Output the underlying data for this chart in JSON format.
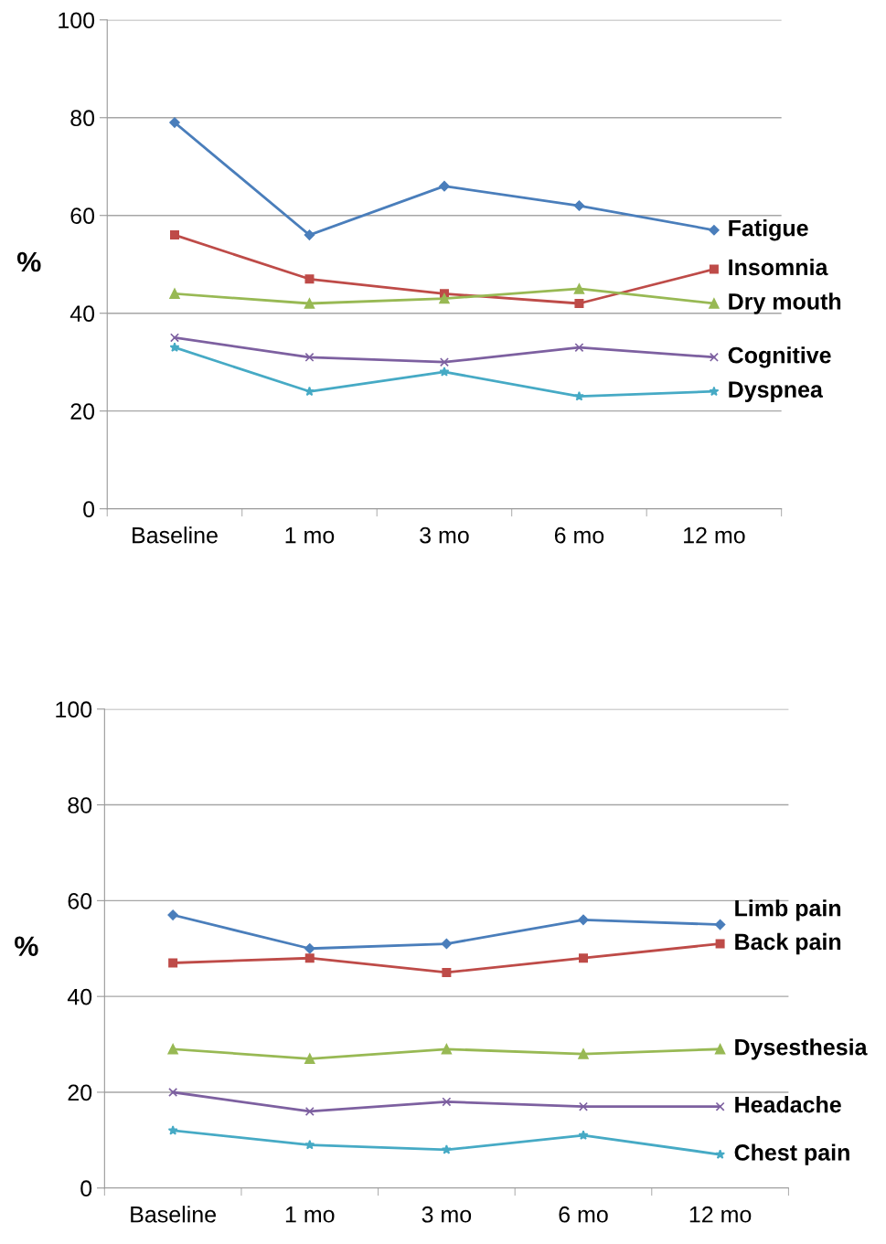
{
  "chart_data": [
    {
      "type": "line",
      "ylabel": "%",
      "categories": [
        "Baseline",
        "1 mo",
        "3 mo",
        "6 mo",
        "12 mo"
      ],
      "ylim": [
        0,
        100
      ],
      "yticks": [
        0,
        20,
        40,
        60,
        80,
        100
      ],
      "grid": "y",
      "legend": false,
      "series": [
        {
          "name": "Fatigue",
          "color": "#4a7ebb",
          "marker": "diamond",
          "values": [
            79,
            56,
            66,
            62,
            57
          ]
        },
        {
          "name": "Insomnia",
          "color": "#be4b48",
          "marker": "square",
          "values": [
            56,
            47,
            44,
            42,
            49
          ]
        },
        {
          "name": "Dry mouth",
          "color": "#98b954",
          "marker": "triangle",
          "values": [
            44,
            42,
            43,
            45,
            42
          ]
        },
        {
          "name": "Cognitive",
          "color": "#7d60a0",
          "marker": "cross",
          "values": [
            35,
            31,
            30,
            33,
            31
          ]
        },
        {
          "name": "Dyspnea",
          "color": "#46aac5",
          "marker": "star",
          "values": [
            33,
            24,
            28,
            23,
            24
          ]
        }
      ]
    },
    {
      "type": "line",
      "ylabel": "%",
      "categories": [
        "Baseline",
        "1 mo",
        "3 mo",
        "6 mo",
        "12 mo"
      ],
      "ylim": [
        0,
        100
      ],
      "yticks": [
        0,
        20,
        40,
        60,
        80,
        100
      ],
      "grid": "y",
      "legend": false,
      "series": [
        {
          "name": "Limb pain",
          "color": "#4a7ebb",
          "marker": "diamond",
          "values": [
            57,
            50,
            51,
            56,
            55
          ]
        },
        {
          "name": "Back pain",
          "color": "#be4b48",
          "marker": "square",
          "values": [
            47,
            48,
            45,
            48,
            51
          ]
        },
        {
          "name": "Dysesthesia",
          "color": "#98b954",
          "marker": "triangle",
          "values": [
            29,
            27,
            29,
            28,
            29
          ]
        },
        {
          "name": "Headache",
          "color": "#7d60a0",
          "marker": "cross",
          "values": [
            20,
            16,
            18,
            17,
            17
          ]
        },
        {
          "name": "Chest pain",
          "color": "#46aac5",
          "marker": "star",
          "values": [
            12,
            9,
            8,
            11,
            7
          ]
        }
      ]
    }
  ]
}
